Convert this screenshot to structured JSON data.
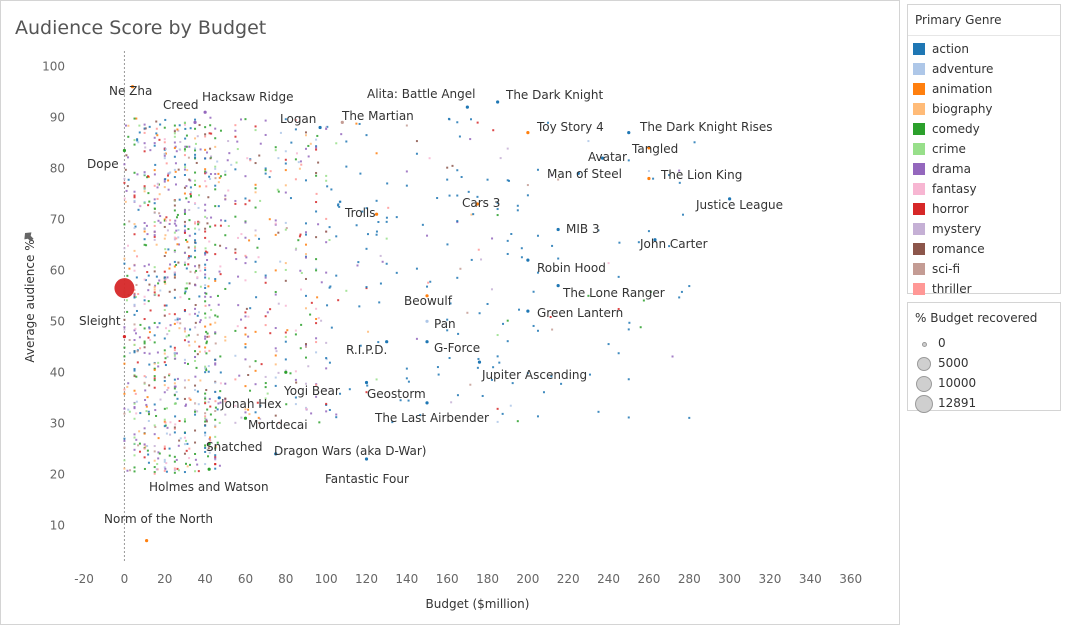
{
  "chart_title": "Audience Score by Budget",
  "legends": {
    "genre": {
      "title": "Primary Genre",
      "items": [
        {
          "label": "action",
          "color": "#1f77b4"
        },
        {
          "label": "adventure",
          "color": "#aec7e8"
        },
        {
          "label": "animation",
          "color": "#ff7f0e"
        },
        {
          "label": "biography",
          "color": "#ffbb78"
        },
        {
          "label": "comedy",
          "color": "#2ca02c"
        },
        {
          "label": "crime",
          "color": "#98df8a"
        },
        {
          "label": "drama",
          "color": "#9467bd"
        },
        {
          "label": "fantasy",
          "color": "#f7b6d2"
        },
        {
          "label": "horror",
          "color": "#d62728"
        },
        {
          "label": "mystery",
          "color": "#c5b0d5"
        },
        {
          "label": "romance",
          "color": "#8c564b"
        },
        {
          "label": "sci-fi",
          "color": "#c49c94"
        },
        {
          "label": "thriller",
          "color": "#ff9896"
        }
      ]
    },
    "size": {
      "title": "% Budget recovered",
      "items": [
        {
          "label": "0",
          "value": 0
        },
        {
          "label": "5000",
          "value": 5000
        },
        {
          "label": "10000",
          "value": 10000
        },
        {
          "label": "12891",
          "value": 12891
        }
      ]
    }
  },
  "chart_data": {
    "type": "scatter",
    "title": "Audience Score by Budget",
    "xlabel": "Budget ($million)",
    "ylabel": "Average audience %",
    "xlim": [
      -25,
      380
    ],
    "ylim": [
      3,
      103
    ],
    "xticks": [
      -20,
      0,
      20,
      40,
      60,
      80,
      100,
      120,
      140,
      160,
      180,
      200,
      220,
      240,
      260,
      280,
      300,
      320,
      340,
      360
    ],
    "yticks": [
      10,
      20,
      30,
      40,
      50,
      60,
      70,
      80,
      90,
      100
    ],
    "reference_line_x": 0,
    "highlight": {
      "x": 0,
      "y": 56.5,
      "genre": "horror",
      "pct_recovered": 12891
    },
    "labeled_points": [
      {
        "label": "Ne Zha",
        "x": 4,
        "y": 96,
        "genre": "animation"
      },
      {
        "label": "Creed",
        "x": 35,
        "y": 89,
        "genre": "drama"
      },
      {
        "label": "Hacksaw Ridge",
        "x": 40,
        "y": 91,
        "genre": "drama"
      },
      {
        "label": "Logan",
        "x": 97,
        "y": 88,
        "genre": "action"
      },
      {
        "label": "The Martian",
        "x": 108,
        "y": 89,
        "genre": "sci-fi"
      },
      {
        "label": "Alita: Battle Angel",
        "x": 170,
        "y": 92,
        "genre": "action"
      },
      {
        "label": "The Dark Knight",
        "x": 185,
        "y": 93,
        "genre": "action"
      },
      {
        "label": "Toy Story 4",
        "x": 200,
        "y": 87,
        "genre": "animation"
      },
      {
        "label": "The Dark Knight Rises",
        "x": 250,
        "y": 87,
        "genre": "action"
      },
      {
        "label": "Avatar",
        "x": 237,
        "y": 82,
        "genre": "action"
      },
      {
        "label": "Tangled",
        "x": 260,
        "y": 84,
        "genre": "animation"
      },
      {
        "label": "Dope",
        "x": 0,
        "y": 83.5,
        "genre": "comedy"
      },
      {
        "label": "Man of Steel",
        "x": 225,
        "y": 79,
        "genre": "action"
      },
      {
        "label": "The Lion King",
        "x": 260,
        "y": 78,
        "genre": "animation"
      },
      {
        "label": "Justice League",
        "x": 300,
        "y": 74,
        "genre": "action"
      },
      {
        "label": "Cars 3",
        "x": 175,
        "y": 73,
        "genre": "animation"
      },
      {
        "label": "Trolls",
        "x": 125,
        "y": 71,
        "genre": "animation"
      },
      {
        "label": "MIB 3",
        "x": 215,
        "y": 68,
        "genre": "action"
      },
      {
        "label": "John Carter",
        "x": 263,
        "y": 66,
        "genre": "action"
      },
      {
        "label": "Robin Hood",
        "x": 200,
        "y": 62,
        "genre": "action"
      },
      {
        "label": "The Lone Ranger",
        "x": 215,
        "y": 57,
        "genre": "action"
      },
      {
        "label": "Beowulf",
        "x": 150,
        "y": 55,
        "genre": "animation"
      },
      {
        "label": "Sleight",
        "x": 0,
        "y": 47,
        "genre": "horror"
      },
      {
        "label": "Green Lantern",
        "x": 200,
        "y": 52,
        "genre": "action"
      },
      {
        "label": "Pan",
        "x": 150,
        "y": 50,
        "genre": "adventure"
      },
      {
        "label": "R.I.P.D.",
        "x": 130,
        "y": 46,
        "genre": "action"
      },
      {
        "label": "G-Force",
        "x": 150,
        "y": 46,
        "genre": "action"
      },
      {
        "label": "Jupiter Ascending",
        "x": 176,
        "y": 42,
        "genre": "action"
      },
      {
        "label": "Yogi Bear",
        "x": 80,
        "y": 40,
        "genre": "comedy"
      },
      {
        "label": "Geostorm",
        "x": 120,
        "y": 38,
        "genre": "action"
      },
      {
        "label": "Jonah Hex",
        "x": 47,
        "y": 35,
        "genre": "action"
      },
      {
        "label": "The Last Airbender",
        "x": 150,
        "y": 34,
        "genre": "action"
      },
      {
        "label": "Mortdecai",
        "x": 60,
        "y": 31,
        "genre": "comedy"
      },
      {
        "label": "Snatched",
        "x": 42,
        "y": 26,
        "genre": "comedy"
      },
      {
        "label": "Dragon Wars (aka D-War)",
        "x": 75,
        "y": 24,
        "genre": "action"
      },
      {
        "label": "Fantastic Four",
        "x": 120,
        "y": 23,
        "genre": "action"
      },
      {
        "label": "Holmes and Watson",
        "x": 42,
        "y": 21,
        "genre": "comedy"
      },
      {
        "label": "Norm of the North",
        "x": 11,
        "y": 7,
        "genre": "animation"
      }
    ]
  }
}
